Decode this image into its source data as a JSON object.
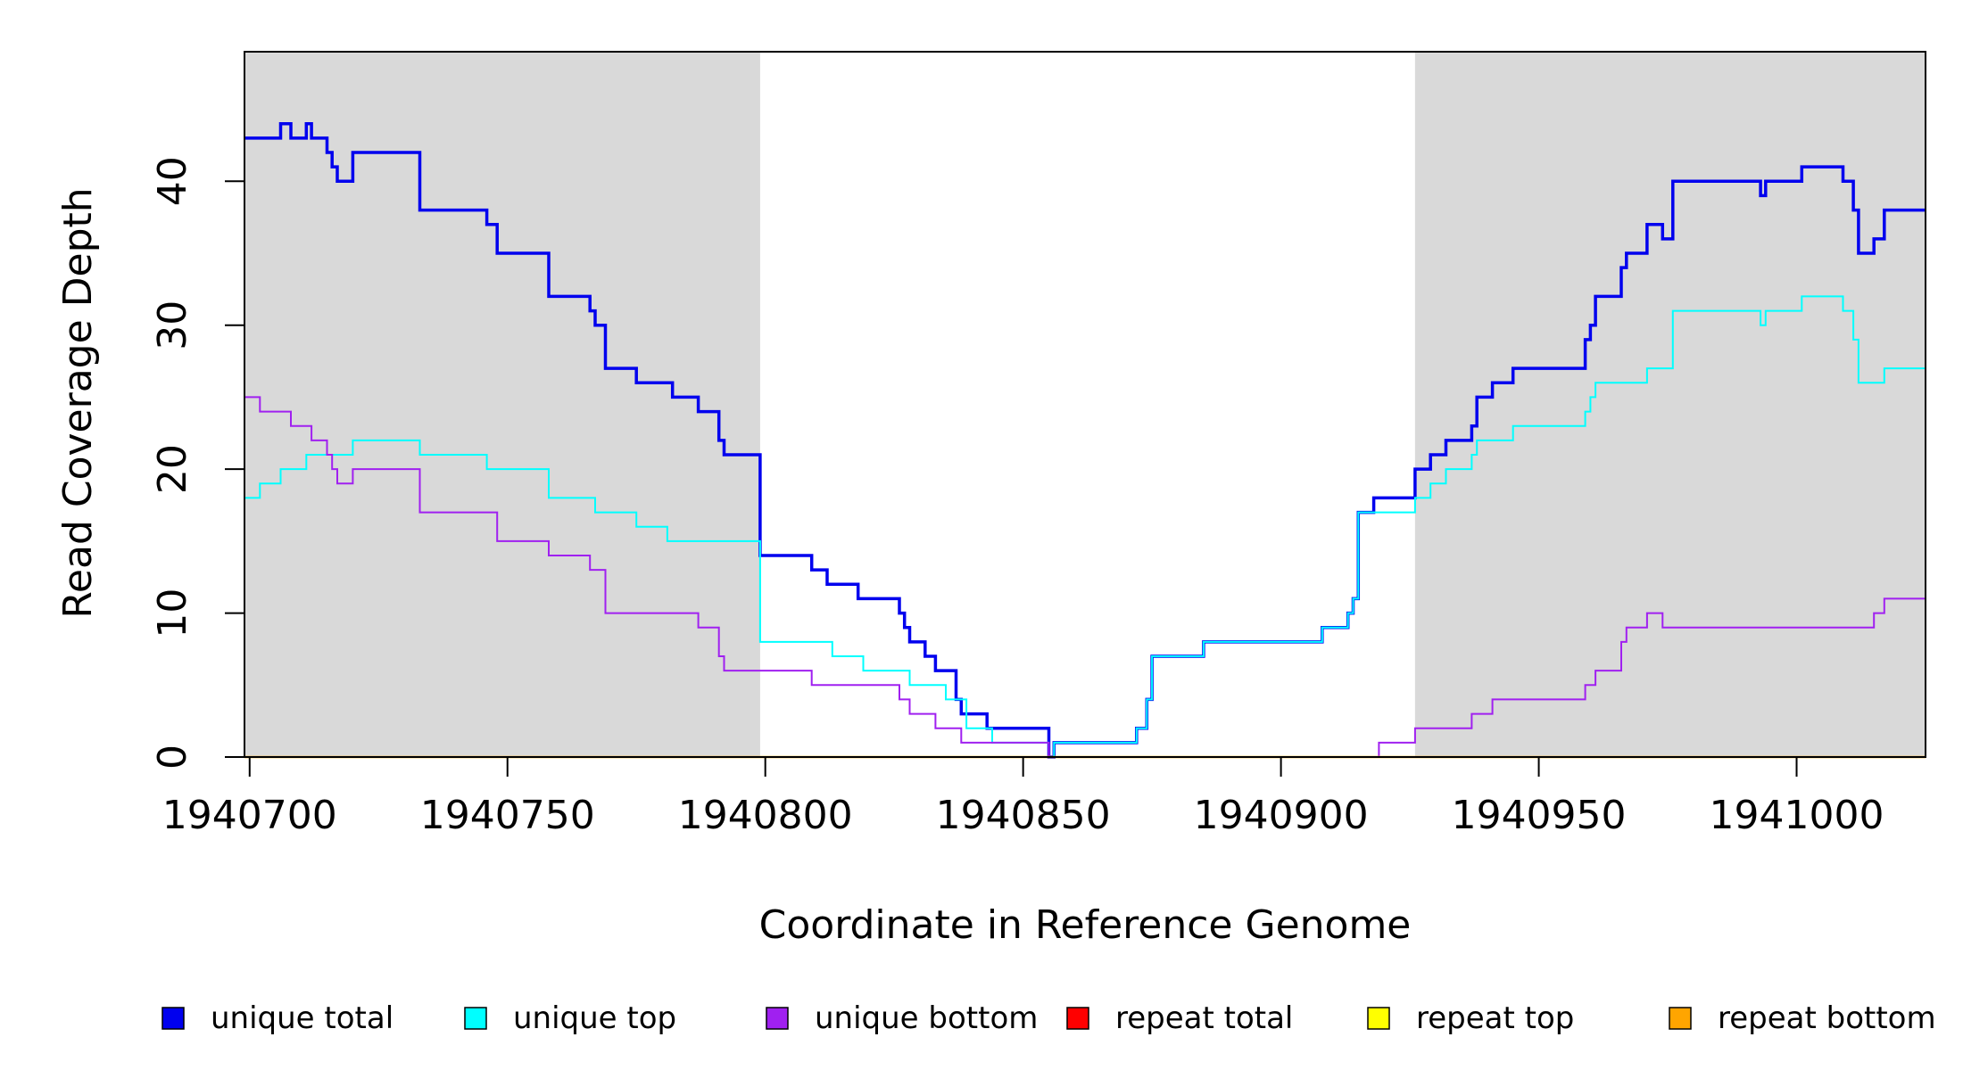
{
  "chart_data": {
    "type": "line",
    "title": "",
    "xlabel": "Coordinate in Reference Genome",
    "ylabel": "Read Coverage Depth",
    "xlim": [
      1940699,
      1941025
    ],
    "ylim": [
      0,
      49
    ],
    "x_ticks": [
      1940700,
      1940750,
      1940800,
      1940850,
      1940900,
      1940950,
      1941000
    ],
    "x_tick_labels": [
      "1940700",
      "1940750",
      "1940800",
      "1940850",
      "1940900",
      "1940950",
      "1941000"
    ],
    "y_ticks": [
      0,
      10,
      20,
      30,
      40
    ],
    "y_tick_labels": [
      "0",
      "10",
      "20",
      "30",
      "40"
    ],
    "shaded_regions": [
      [
        1940699,
        1940799
      ],
      [
        1940926,
        1941025
      ]
    ],
    "grid": false,
    "legend_position": "bottom",
    "series": [
      {
        "name": "unique total",
        "color": "#0000EE",
        "points": [
          [
            1940699,
            43
          ],
          [
            1940706,
            44
          ],
          [
            1940708,
            43
          ],
          [
            1940711,
            44
          ],
          [
            1940712,
            43
          ],
          [
            1940715,
            42
          ],
          [
            1940716,
            41
          ],
          [
            1940717,
            40
          ],
          [
            1940720,
            42
          ],
          [
            1940733,
            38
          ],
          [
            1940746,
            37
          ],
          [
            1940748,
            35
          ],
          [
            1940758,
            32
          ],
          [
            1940766,
            31
          ],
          [
            1940767,
            30
          ],
          [
            1940769,
            27
          ],
          [
            1940775,
            26
          ],
          [
            1940782,
            25
          ],
          [
            1940787,
            24
          ],
          [
            1940791,
            22
          ],
          [
            1940792,
            21
          ],
          [
            1940799,
            14
          ],
          [
            1940809,
            13
          ],
          [
            1940812,
            12
          ],
          [
            1940818,
            11
          ],
          [
            1940826,
            10
          ],
          [
            1940827,
            9
          ],
          [
            1940828,
            8
          ],
          [
            1940831,
            7
          ],
          [
            1940833,
            6
          ],
          [
            1940837,
            4
          ],
          [
            1940838,
            3
          ],
          [
            1940843,
            2
          ],
          [
            1940855,
            0
          ],
          [
            1940856,
            1
          ],
          [
            1940872,
            2
          ],
          [
            1940874,
            4
          ],
          [
            1940875,
            7
          ],
          [
            1940885,
            8
          ],
          [
            1940908,
            9
          ],
          [
            1940913,
            10
          ],
          [
            1940914,
            11
          ],
          [
            1940915,
            17
          ],
          [
            1940918,
            18
          ],
          [
            1940926,
            20
          ],
          [
            1940929,
            21
          ],
          [
            1940932,
            22
          ],
          [
            1940937,
            23
          ],
          [
            1940938,
            25
          ],
          [
            1940941,
            26
          ],
          [
            1940945,
            27
          ],
          [
            1940959,
            29
          ],
          [
            1940960,
            30
          ],
          [
            1940961,
            32
          ],
          [
            1940966,
            34
          ],
          [
            1940967,
            35
          ],
          [
            1940971,
            37
          ],
          [
            1940974,
            36
          ],
          [
            1940976,
            40
          ],
          [
            1940993,
            39
          ],
          [
            1940994,
            40
          ],
          [
            1941001,
            41
          ],
          [
            1941009,
            40
          ],
          [
            1941011,
            38
          ],
          [
            1941012,
            35
          ],
          [
            1941015,
            36
          ],
          [
            1941017,
            38
          ],
          [
            1941025,
            38
          ]
        ]
      },
      {
        "name": "unique top",
        "color": "#00FFFF",
        "points": [
          [
            1940699,
            18
          ],
          [
            1940702,
            19
          ],
          [
            1940706,
            20
          ],
          [
            1940711,
            21
          ],
          [
            1940720,
            22
          ],
          [
            1940733,
            21
          ],
          [
            1940746,
            20
          ],
          [
            1940758,
            18
          ],
          [
            1940767,
            17
          ],
          [
            1940775,
            16
          ],
          [
            1940781,
            15
          ],
          [
            1940799,
            8
          ],
          [
            1940813,
            7
          ],
          [
            1940819,
            6
          ],
          [
            1940828,
            5
          ],
          [
            1940835,
            4
          ],
          [
            1940839,
            2
          ],
          [
            1940844,
            1
          ],
          [
            1940855,
            0
          ],
          [
            1940856,
            1
          ],
          [
            1940872,
            2
          ],
          [
            1940874,
            4
          ],
          [
            1940875,
            7
          ],
          [
            1940885,
            8
          ],
          [
            1940908,
            9
          ],
          [
            1940913,
            10
          ],
          [
            1940914,
            11
          ],
          [
            1940915,
            17
          ],
          [
            1940926,
            18
          ],
          [
            1940929,
            19
          ],
          [
            1940932,
            20
          ],
          [
            1940937,
            21
          ],
          [
            1940938,
            22
          ],
          [
            1940945,
            23
          ],
          [
            1940959,
            24
          ],
          [
            1940960,
            25
          ],
          [
            1940961,
            26
          ],
          [
            1940971,
            27
          ],
          [
            1940976,
            31
          ],
          [
            1940993,
            30
          ],
          [
            1940994,
            31
          ],
          [
            1941001,
            32
          ],
          [
            1941009,
            31
          ],
          [
            1941011,
            29
          ],
          [
            1941012,
            26
          ],
          [
            1941017,
            27
          ],
          [
            1941025,
            27
          ]
        ]
      },
      {
        "name": "unique bottom",
        "color": "#A020F0",
        "points": [
          [
            1940699,
            25
          ],
          [
            1940702,
            24
          ],
          [
            1940708,
            23
          ],
          [
            1940712,
            22
          ],
          [
            1940715,
            21
          ],
          [
            1940716,
            20
          ],
          [
            1940717,
            19
          ],
          [
            1940720,
            20
          ],
          [
            1940733,
            17
          ],
          [
            1940748,
            15
          ],
          [
            1940758,
            14
          ],
          [
            1940766,
            13
          ],
          [
            1940769,
            10
          ],
          [
            1940787,
            9
          ],
          [
            1940791,
            7
          ],
          [
            1940792,
            6
          ],
          [
            1940809,
            5
          ],
          [
            1940826,
            4
          ],
          [
            1940828,
            3
          ],
          [
            1940833,
            2
          ],
          [
            1940838,
            1
          ],
          [
            1940855,
            0
          ],
          [
            1940919,
            1
          ],
          [
            1940926,
            2
          ],
          [
            1940937,
            3
          ],
          [
            1940941,
            4
          ],
          [
            1940959,
            5
          ],
          [
            1940961,
            6
          ],
          [
            1940966,
            8
          ],
          [
            1940967,
            9
          ],
          [
            1940971,
            10
          ],
          [
            1940974,
            9
          ],
          [
            1941015,
            10
          ],
          [
            1941017,
            11
          ],
          [
            1941025,
            11
          ]
        ]
      },
      {
        "name": "repeat total",
        "color": "#FF0000",
        "points": [
          [
            1940699,
            0
          ],
          [
            1941025,
            0
          ]
        ]
      },
      {
        "name": "repeat top",
        "color": "#FFFF00",
        "points": [
          [
            1940699,
            0
          ],
          [
            1941025,
            0
          ]
        ]
      },
      {
        "name": "repeat bottom",
        "color": "#FFA500",
        "points": [
          [
            1940699,
            0
          ],
          [
            1941025,
            0
          ]
        ]
      }
    ]
  }
}
